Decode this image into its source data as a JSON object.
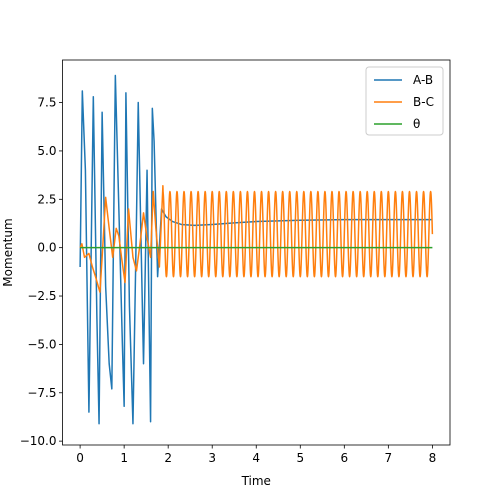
{
  "chart_data": {
    "type": "line",
    "title": "",
    "xlabel": "Time",
    "ylabel": "Momentum",
    "xlim": [
      -0.4,
      8.4
    ],
    "ylim": [
      -10.2,
      9.7
    ],
    "xticks": [
      "0",
      "1",
      "2",
      "3",
      "4",
      "5",
      "6",
      "7",
      "8"
    ],
    "yticks": [
      "−10.0",
      "−7.5",
      "−5.0",
      "−2.5",
      "0.0",
      "2.5",
      "5.0",
      "7.5"
    ],
    "legend_position": "top-right",
    "grid": false,
    "series": [
      {
        "name": "A-B",
        "color": "#1f77b4",
        "x": [
          0.0,
          0.05,
          0.12,
          0.2,
          0.3,
          0.38,
          0.43,
          0.5,
          0.58,
          0.66,
          0.72,
          0.8,
          0.88,
          0.96,
          1.0,
          1.04,
          1.12,
          1.2,
          1.28,
          1.32,
          1.36,
          1.44,
          1.52,
          1.6,
          1.64,
          1.68,
          1.76,
          1.85,
          1.95,
          2.1,
          2.3,
          2.6,
          3.0,
          3.5,
          4.0,
          5.0,
          6.0,
          7.0,
          8.0
        ],
        "y": [
          -1.0,
          8.1,
          4.0,
          -8.5,
          7.8,
          -3.5,
          -9.1,
          7.0,
          -2.0,
          -6.0,
          -7.3,
          8.9,
          2.0,
          -5.0,
          -8.2,
          8.0,
          -3.0,
          -9.1,
          1.5,
          7.5,
          3.0,
          -6.0,
          4.0,
          -9.0,
          7.2,
          5.5,
          -1.5,
          2.0,
          1.6,
          1.35,
          1.2,
          1.15,
          1.2,
          1.28,
          1.35,
          1.42,
          1.45,
          1.45,
          1.45
        ]
      },
      {
        "name": "B-C",
        "color": "#ff7f0e",
        "x": [
          0.0,
          0.04,
          0.1,
          0.2,
          0.28,
          0.35,
          0.45,
          0.5,
          0.58,
          0.66,
          0.74,
          0.82,
          0.88,
          0.94,
          1.02,
          1.1,
          1.2,
          1.28,
          1.36,
          1.44,
          1.52,
          1.6,
          1.66,
          1.72,
          1.8,
          1.88
        ],
        "y": [
          0.0,
          0.2,
          -0.5,
          -0.3,
          -1.0,
          -1.5,
          -2.3,
          -0.5,
          2.6,
          1.0,
          -0.5,
          1.0,
          0.6,
          -0.5,
          -1.8,
          2.0,
          -0.5,
          -1.2,
          0.2,
          1.8,
          0.5,
          -0.5,
          2.9,
          1.0,
          -1.0,
          3.2
        ],
        "oscillation": {
          "x_start": 1.88,
          "x_end": 8.0,
          "period": 0.16,
          "max": 2.9,
          "min": -1.5
        }
      },
      {
        "name": "θ",
        "color": "#2ca02c",
        "x": [
          0.0,
          8.0
        ],
        "y": [
          0.0,
          0.0
        ]
      }
    ]
  }
}
